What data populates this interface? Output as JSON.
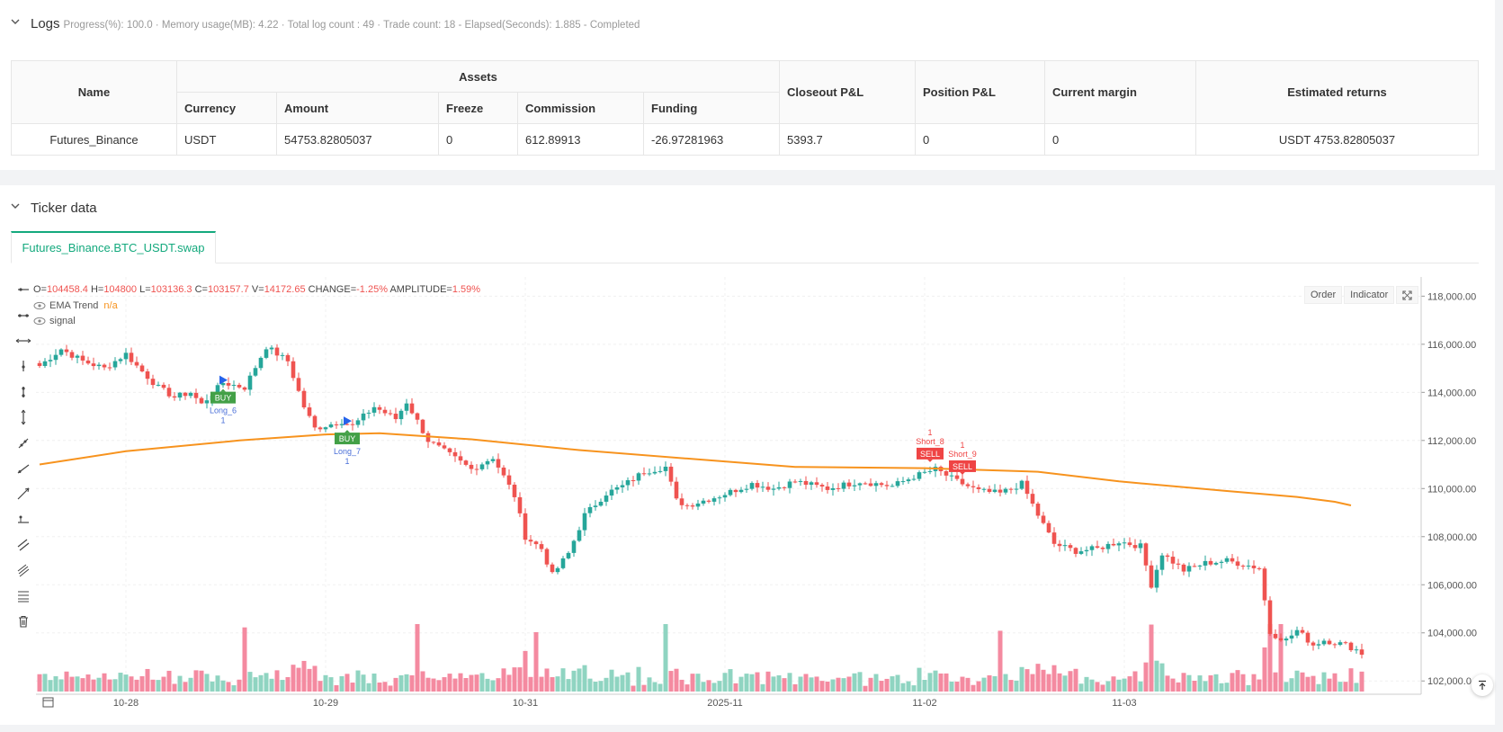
{
  "logs": {
    "title": "Logs",
    "summary": "Progress(%): 100.0 · Memory usage(MB): 4.22 · Total log count : 49 · Trade count:  18 - Elapsed(Seconds): 1.885 - Completed"
  },
  "assets_table": {
    "headers": {
      "name": "Name",
      "assets": "Assets",
      "currency": "Currency",
      "amount": "Amount",
      "freeze": "Freeze",
      "commission": "Commission",
      "funding": "Funding",
      "closeout": "Closeout P&L",
      "position": "Position P&L",
      "margin": "Current margin",
      "returns": "Estimated returns"
    },
    "row": {
      "name": "Futures_Binance",
      "currency": "USDT",
      "amount": "54753.82805037",
      "freeze": "0",
      "commission": "612.89913",
      "funding": "-26.97281963",
      "closeout": "5393.7",
      "position": "0",
      "margin": "0",
      "returns": "USDT 4753.82805037"
    }
  },
  "ticker": {
    "title": "Ticker data",
    "tab_label": "Futures_Binance.BTC_USDT.swap"
  },
  "chart_header": {
    "o_label": "O=",
    "o": "104458.4",
    "h_label": "H=",
    "h": "104800",
    "l_label": "L=",
    "l": "103136.3",
    "c_label": "C=",
    "c": "103157.7",
    "v_label": "V=",
    "v": "14172.65",
    "change_label": "CHANGE=",
    "change": "-1.25%",
    "amp_label": "AMPLITUDE=",
    "amp": "1.59%",
    "ema_label": "EMA Trend",
    "ema_value": "n/a",
    "signal_label": "signal",
    "order_btn": "Order",
    "indicator_btn": "Indicator"
  },
  "colors": {
    "up": "#26a69a",
    "down": "#ef5350",
    "ema": "#f7931e",
    "accent": "#13a97d",
    "buy": "#43a047"
  },
  "chart_data": {
    "type": "candlestick",
    "symbol": "Futures_Binance.BTC_USDT.swap",
    "ylim": [
      101500,
      119000
    ],
    "y_ticks": [
      102000,
      104000,
      106000,
      108000,
      110000,
      112000,
      114000,
      116000,
      118000
    ],
    "y_tick_labels": [
      "102,000.0",
      "104,000.00",
      "106,000.00",
      "108,000.00",
      "110,000.00",
      "112,000.00",
      "114,000.00",
      "116,000.00",
      "118,000.00"
    ],
    "x_ticks": [
      {
        "i": 16,
        "label": "10-28"
      },
      {
        "i": 53,
        "label": "10-29"
      },
      {
        "i": 90,
        "label": "10-31"
      },
      {
        "i": 127,
        "label": "2025-11"
      },
      {
        "i": 164,
        "label": "11-02"
      },
      {
        "i": 201,
        "label": "11-03"
      }
    ],
    "anchors": [
      [
        0,
        115100
      ],
      [
        4,
        115800
      ],
      [
        8,
        115300
      ],
      [
        12,
        115000
      ],
      [
        16,
        115600
      ],
      [
        18,
        115100
      ],
      [
        22,
        114200
      ],
      [
        25,
        113800
      ],
      [
        28,
        114000
      ],
      [
        30,
        113500
      ],
      [
        34,
        114400
      ],
      [
        38,
        114200
      ],
      [
        42,
        115900
      ],
      [
        46,
        115300
      ],
      [
        49,
        113400
      ],
      [
        51,
        112500
      ],
      [
        56,
        112800
      ],
      [
        58,
        112600
      ],
      [
        62,
        113400
      ],
      [
        66,
        112900
      ],
      [
        68,
        113600
      ],
      [
        72,
        112000
      ],
      [
        76,
        111400
      ],
      [
        80,
        110800
      ],
      [
        84,
        111300
      ],
      [
        88,
        109700
      ],
      [
        90,
        108000
      ],
      [
        93,
        107500
      ],
      [
        95,
        106400
      ],
      [
        98,
        107300
      ],
      [
        101,
        108900
      ],
      [
        105,
        109800
      ],
      [
        108,
        110100
      ],
      [
        112,
        110700
      ],
      [
        116,
        110900
      ],
      [
        118,
        109500
      ],
      [
        120,
        109300
      ],
      [
        126,
        109700
      ],
      [
        132,
        110200
      ],
      [
        136,
        110000
      ],
      [
        140,
        110300
      ],
      [
        146,
        110000
      ],
      [
        152,
        110300
      ],
      [
        158,
        110100
      ],
      [
        162,
        110500
      ],
      [
        166,
        110800
      ],
      [
        170,
        110300
      ],
      [
        174,
        109900
      ],
      [
        178,
        109800
      ],
      [
        182,
        110200
      ],
      [
        185,
        108900
      ],
      [
        188,
        107700
      ],
      [
        192,
        107400
      ],
      [
        196,
        107500
      ],
      [
        200,
        107800
      ],
      [
        204,
        107600
      ],
      [
        206,
        106000
      ],
      [
        208,
        107300
      ],
      [
        212,
        106600
      ],
      [
        216,
        106900
      ],
      [
        220,
        107000
      ],
      [
        224,
        106800
      ],
      [
        226,
        106700
      ],
      [
        228,
        104000
      ],
      [
        231,
        103700
      ],
      [
        233,
        104100
      ],
      [
        236,
        103500
      ],
      [
        238,
        103700
      ],
      [
        240,
        103600
      ],
      [
        242,
        103500
      ],
      [
        244,
        103300
      ],
      [
        245,
        103150
      ]
    ],
    "ema_anchors": [
      [
        0,
        111000
      ],
      [
        16,
        111550
      ],
      [
        37,
        112000
      ],
      [
        53,
        112250
      ],
      [
        63,
        112300
      ],
      [
        80,
        112050
      ],
      [
        100,
        111600
      ],
      [
        120,
        111250
      ],
      [
        140,
        110900
      ],
      [
        164,
        110850
      ],
      [
        185,
        110700
      ],
      [
        200,
        110300
      ],
      [
        220,
        109900
      ],
      [
        233,
        109650
      ],
      [
        240,
        109450
      ],
      [
        243,
        109300
      ]
    ],
    "signals": [
      {
        "i": 34,
        "side": "buy",
        "label": "BUY",
        "name": "Long_6",
        "qty": "1"
      },
      {
        "i": 57,
        "side": "buy",
        "label": "BUY",
        "name": "Long_7",
        "qty": "1"
      },
      {
        "i": 165,
        "side": "sell",
        "label": "SELL",
        "name": "Short_8",
        "qty": "1"
      },
      {
        "i": 171,
        "side": "sell",
        "label": "SELL",
        "name": "Short_9",
        "qty": "1"
      }
    ],
    "series": [
      {
        "name": "EMA Trend",
        "type": "line"
      },
      {
        "name": "volume",
        "type": "bar"
      }
    ]
  }
}
